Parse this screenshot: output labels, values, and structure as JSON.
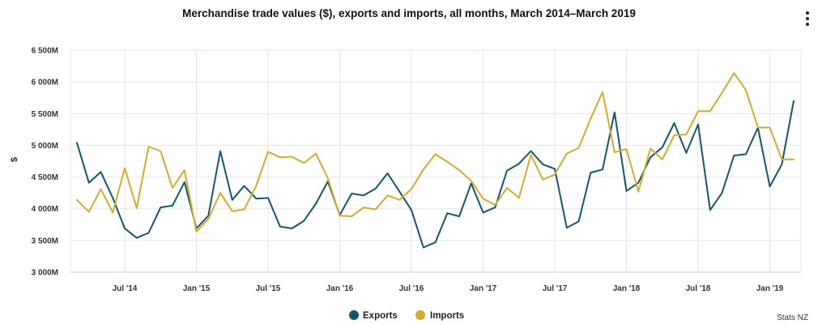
{
  "chart_data": {
    "type": "line",
    "title": "Merchandise trade values ($), exports and imports, all months, March 2014–March 2019",
    "xlabel": "",
    "ylabel": "$",
    "ylim": [
      3000,
      6500
    ],
    "ytick_values": [
      3000,
      3500,
      4000,
      4500,
      5000,
      5500,
      6000,
      6500
    ],
    "ytick_labels": [
      "3 000M",
      "3 500M",
      "4 000M",
      "4 500M",
      "5 000M",
      "5 500M",
      "6 000M",
      "6 500M"
    ],
    "xtick_labels": [
      "Jul '14",
      "Jan '15",
      "Jul '15",
      "Jan '16",
      "Jul '16",
      "Jan '17",
      "Jul '17",
      "Jan '18",
      "Jul '18",
      "Jan '19"
    ],
    "xtick_index": [
      4,
      10,
      16,
      22,
      28,
      34,
      40,
      46,
      52,
      58
    ],
    "x_start": "March 2014",
    "x_end": "March 2019",
    "series": [
      {
        "name": "Exports",
        "color": "#12576b",
        "values": [
          5040,
          4410,
          4580,
          4170,
          3690,
          3540,
          3620,
          4020,
          4050,
          4420,
          3690,
          3890,
          4910,
          4140,
          4360,
          4160,
          4170,
          3720,
          3690,
          3810,
          4080,
          4430,
          3900,
          4240,
          4210,
          4320,
          4560,
          4270,
          3980,
          3390,
          3470,
          3930,
          3880,
          4400,
          3940,
          4020,
          4600,
          4710,
          4910,
          4700,
          4630,
          3700,
          3800,
          4570,
          4620,
          5520,
          4280,
          4410,
          4810,
          4970,
          5350,
          4880,
          5330,
          3980,
          4250,
          4840,
          4860,
          5280,
          4350,
          4700,
          5700
        ]
      },
      {
        "name": "Imports",
        "color": "#d4ac2b",
        "values": [
          4140,
          3950,
          4310,
          3940,
          4640,
          4010,
          4980,
          4910,
          4330,
          4610,
          3640,
          3840,
          4250,
          3960,
          3990,
          4360,
          4900,
          4810,
          4820,
          4720,
          4870,
          4480,
          3890,
          3880,
          4020,
          3990,
          4210,
          4140,
          4310,
          4620,
          4860,
          4740,
          4610,
          4440,
          4160,
          4060,
          4330,
          4170,
          4850,
          4460,
          4540,
          4870,
          4960,
          5420,
          5840,
          4890,
          4940,
          4270,
          4950,
          4780,
          5160,
          5170,
          5540,
          5540,
          5830,
          6140,
          5870,
          5280,
          5280,
          4780,
          4780
        ]
      }
    ],
    "legend_position": "bottom-center",
    "credits": "Stats NZ"
  }
}
